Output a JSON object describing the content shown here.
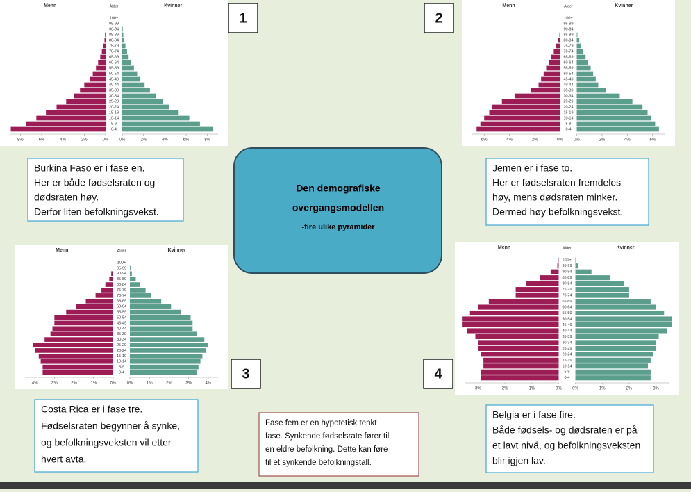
{
  "chart_data": [
    {
      "type": "bar",
      "number": "1",
      "header": "Alder",
      "categories": [
        "0-4",
        "5-9",
        "10-14",
        "15-19",
        "20-24",
        "25-29",
        "30-34",
        "35-39",
        "40-44",
        "45-49",
        "50-54",
        "55-59",
        "60-64",
        "65-69",
        "70-74",
        "75-79",
        "80-84",
        "85-89",
        "90-94",
        "95-99",
        "100+"
      ],
      "series": [
        {
          "name": "Menn",
          "color": "#9c1d55",
          "values": [
            8.9,
            7.5,
            6.5,
            5.6,
            4.6,
            3.7,
            3.0,
            2.4,
            2.0,
            1.5,
            1.2,
            0.9,
            0.7,
            0.5,
            0.35,
            0.2,
            0.1,
            0.05,
            0,
            0,
            0
          ]
        },
        {
          "name": "Kvinner",
          "color": "#5c9e8c",
          "values": [
            8.5,
            7.3,
            6.3,
            5.3,
            4.4,
            3.8,
            3.2,
            2.6,
            2.1,
            1.7,
            1.4,
            1.1,
            0.8,
            0.6,
            0.45,
            0.3,
            0.2,
            0.1,
            0.05,
            0,
            0
          ]
        }
      ],
      "xlim": [
        0,
        9
      ],
      "xticks": [
        {
          "value": 0,
          "label": "0%"
        },
        {
          "value": 2,
          "label": "2%"
        },
        {
          "value": 4,
          "label": "4%"
        },
        {
          "value": 6,
          "label": "6%"
        },
        {
          "value": 8,
          "label": "8%"
        }
      ]
    },
    {
      "type": "bar",
      "number": "2",
      "header": "Alder",
      "categories": [
        "0-4",
        "5-9",
        "10-14",
        "15-19",
        "20-24",
        "25-29",
        "30-34",
        "35-39",
        "40-44",
        "45-49",
        "50-54",
        "55-59",
        "60-64",
        "65-69",
        "70-74",
        "75-79",
        "80-84",
        "85-89",
        "90-94",
        "95-99",
        "100+"
      ],
      "series": [
        {
          "name": "Menn",
          "color": "#9c1d55",
          "values": [
            6.6,
            6.3,
            6.0,
            5.6,
            5.4,
            4.6,
            3.6,
            2.3,
            1.7,
            1.5,
            1.3,
            1.1,
            0.9,
            0.7,
            0.5,
            0.3,
            0.15,
            0.05,
            0,
            0,
            0
          ]
        },
        {
          "name": "Kvinner",
          "color": "#5c9e8c",
          "values": [
            6.5,
            6.2,
            5.9,
            5.6,
            5.2,
            4.4,
            3.4,
            2.3,
            1.7,
            1.5,
            1.3,
            1.1,
            0.9,
            0.7,
            0.5,
            0.3,
            0.2,
            0.05,
            0,
            0,
            0
          ]
        }
      ],
      "xlim": [
        0,
        7
      ],
      "xticks": [
        {
          "value": 0,
          "label": "0%"
        },
        {
          "value": 2,
          "label": "2%"
        },
        {
          "value": 4,
          "label": "4%"
        },
        {
          "value": 6,
          "label": "6%"
        }
      ]
    },
    {
      "type": "bar",
      "number": "3",
      "header": "Alder",
      "categories": [
        "0-4",
        "5-9",
        "10-14",
        "15-19",
        "20-24",
        "25-29",
        "30-34",
        "35-39",
        "40-44",
        "45-49",
        "50-54",
        "55-59",
        "60-64",
        "65-69",
        "70-74",
        "75-79",
        "80-84",
        "85-89",
        "90-94",
        "95-99",
        "100+"
      ],
      "series": [
        {
          "name": "Menn",
          "color": "#9c1d55",
          "values": [
            3.6,
            3.6,
            3.7,
            3.8,
            4.0,
            4.1,
            3.5,
            3.2,
            3.1,
            3.0,
            3.0,
            2.4,
            1.9,
            1.4,
            0.9,
            0.6,
            0.4,
            0.2,
            0.1,
            0.02,
            0
          ]
        },
        {
          "name": "Kvinner",
          "color": "#5c9e8c",
          "values": [
            3.4,
            3.5,
            3.6,
            3.7,
            3.9,
            4.0,
            3.8,
            3.4,
            3.2,
            3.2,
            3.1,
            2.6,
            2.1,
            1.6,
            1.1,
            0.8,
            0.5,
            0.3,
            0.1,
            0.03,
            0
          ]
        }
      ],
      "xlim": [
        0,
        4.5
      ],
      "xticks": [
        {
          "value": 0,
          "label": "0%"
        },
        {
          "value": 1,
          "label": "1%"
        },
        {
          "value": 2,
          "label": "2%"
        },
        {
          "value": 3,
          "label": "3%"
        },
        {
          "value": 4,
          "label": "4%"
        }
      ]
    },
    {
      "type": "bar",
      "number": "4",
      "header": "Alder",
      "categories": [
        "0-4",
        "5-9",
        "10-14",
        "15-19",
        "20-24",
        "25-29",
        "30-34",
        "35-39",
        "40-44",
        "45-49",
        "50-54",
        "55-59",
        "60-64",
        "65-69",
        "70-74",
        "75-79",
        "80-84",
        "85-89",
        "90-94",
        "95-99",
        "100+"
      ],
      "series": [
        {
          "name": "Menn",
          "color": "#9c1d55",
          "values": [
            2.9,
            2.9,
            2.8,
            2.8,
            2.9,
            3.0,
            3.0,
            3.1,
            3.4,
            3.6,
            3.6,
            3.3,
            3.0,
            2.6,
            1.6,
            1.6,
            1.2,
            0.7,
            0.3,
            0.05,
            0.01
          ]
        },
        {
          "name": "Kvinner",
          "color": "#5c9e8c",
          "values": [
            2.8,
            2.8,
            2.7,
            2.8,
            2.9,
            3.0,
            3.0,
            3.1,
            3.4,
            3.6,
            3.6,
            3.3,
            3.0,
            2.8,
            2.0,
            2.0,
            1.8,
            1.3,
            0.6,
            0.1,
            0.02
          ]
        }
      ],
      "xlim": [
        0,
        3.5
      ],
      "xticks": [
        {
          "value": 0,
          "label": "0%"
        },
        {
          "value": 1,
          "label": "1%"
        },
        {
          "value": 2,
          "label": "2%"
        },
        {
          "value": 3,
          "label": "3%"
        }
      ]
    }
  ],
  "center": {
    "title_lines": [
      "Den demografiske",
      "overgangsmodellen"
    ],
    "subtitle": "-fire ulike pyramider"
  },
  "texts": [
    {
      "lines": [
        "Burkina Faso er i fase en.",
        "Her er både fødselsraten og",
        "dødsraten høy.",
        "Derfor liten befolkningsvekst."
      ]
    },
    {
      "lines": [
        "Jemen er i fase to.",
        "Her er fødselsraten fremdeles",
        "høy, mens dødsraten minker.",
        "Dermed høy befolkningsvekst."
      ]
    },
    {
      "lines": [
        "Costa Rica er i fase tre.",
        "Fødselsraten begynner å synke,",
        "og befolkningsveksten vil etter",
        "hvert avta."
      ]
    },
    {
      "lines": [
        "Belgia er i fase fire.",
        "Både fødsels- og dødsraten er på",
        "et lavt nivå, og befolkningsveksten",
        "blir igjen lav."
      ]
    },
    {
      "lines": [
        "Fase fem er en hypotetisk tenkt",
        "fase. Synkende fødselsrate fører til",
        "en eldre befolkning. Dette kan føre",
        "til et synkende befolkningstall."
      ]
    }
  ]
}
